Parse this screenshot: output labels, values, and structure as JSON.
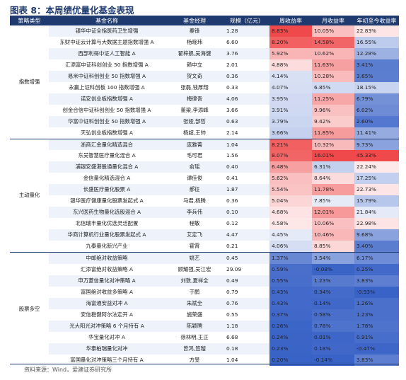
{
  "title": "图表 8：本周绩优量化基金表现",
  "headers": {
    "strategy": "策略类型",
    "name": "基金名称",
    "manager": "基金经理",
    "scale": "规模（亿元）",
    "week": "周收益率",
    "month": "月收益率",
    "ytd": "年初至今收益率"
  },
  "groups": [
    {
      "strategy": "指数增强",
      "rows": [
        {
          "name": "银华中证全指医药卫生增强",
          "manager": "秦锋",
          "scale": "1.28",
          "week": "8.83%",
          "month": "10.05%",
          "ytd": "22.83%"
        },
        {
          "name": "东财中证云计算与大数据主题指数增强 A",
          "manager": "杨晓玮",
          "scale": "6.60",
          "week": "8.20%",
          "month": "14.58%",
          "ytd": "16.55%"
        },
        {
          "name": "西部利得中证人工智能 A",
          "manager": "翟梓舰,吴海健",
          "scale": "3.76",
          "week": "5.92%",
          "month": "10.62%",
          "ytd": "12.28%"
        },
        {
          "name": "汇添富中证科创创业 50 指数增强 A",
          "manager": "赖中立",
          "scale": "2.01",
          "week": "4.88%",
          "month": "11.63%",
          "ytd": "3.41%"
        },
        {
          "name": "易米中证科创创业 50 指数增强 A",
          "manager": "贺文奇",
          "scale": "0.36",
          "week": "4.14%",
          "month": "10.28%",
          "ytd": "3.65%"
        },
        {
          "name": "永赢上证科创板 100 指数增强 A",
          "manager": "张磊,钱厚翔",
          "scale": "0.33",
          "week": "4.07%",
          "month": "6.85%",
          "ytd": "18.15%"
        },
        {
          "name": "诺安创业板指数增强 A",
          "manager": "梅律吾",
          "scale": "4.06",
          "week": "3.95%",
          "month": "11.25%",
          "ytd": "6.79%"
        },
        {
          "name": "创金合信中证科创创业 50 指数增强 A",
          "manager": "董梁,李添峰",
          "scale": "3.66",
          "week": "3.91%",
          "month": "9.96%",
          "ytd": "6.02%"
        },
        {
          "name": "华富中证科创创业 50 指数增强 A",
          "manager": "张娅,郜哲",
          "scale": "0.63",
          "week": "3.79%",
          "month": "9.42%",
          "ytd": "2.60%"
        },
        {
          "name": "天弘创业板指数增强 A",
          "manager": "杨超,王帅",
          "scale": "2.14",
          "week": "3.66%",
          "month": "11.85%",
          "ytd": "11.41%"
        }
      ]
    },
    {
      "strategy": "主动量化",
      "rows": [
        {
          "name": "浙商汇金量化精选混合",
          "manager": "庞雅菁",
          "scale": "1.04",
          "week": "8.21%",
          "month": "10.32%",
          "ytd": "9.73%"
        },
        {
          "name": "东吴智慧医疗量化混合 A",
          "manager": "毛可君",
          "scale": "1.56",
          "week": "8.07%",
          "month": "16.01%",
          "ytd": "45.33%"
        },
        {
          "name": "浦银安盛港股通量化混合 A",
          "manager": "俞瑶",
          "scale": "0.40",
          "week": "6.48%",
          "month": "6.31%",
          "ytd": "22.24%"
        },
        {
          "name": "金信量化精选混合 A",
          "manager": "谭佳俊",
          "scale": "0.41",
          "week": "5.62%",
          "month": "8.64%",
          "ytd": "17.25%"
        },
        {
          "name": "长盛医疗量化股票 A",
          "manager": "郝征",
          "scale": "1.87",
          "week": "5.54%",
          "month": "11.78%",
          "ytd": "22.73%"
        },
        {
          "name": "银华医疗健康量化股票发起式 A",
          "manager": "马君,杨腾",
          "scale": "0.36",
          "week": "5.04%",
          "month": "7.85%",
          "ytd": "15.79%"
        },
        {
          "name": "东兴医药生物量化选股混合 A",
          "manager": "李兵伟",
          "scale": "0.10",
          "week": "4.68%",
          "month": "12.01%",
          "ytd": "21.84%"
        },
        {
          "name": "北信瑞丰量化优选灵活配置",
          "manager": "程敏",
          "scale": "0.12",
          "week": "4.58%",
          "month": "10.06%",
          "ytd": "22.98%"
        },
        {
          "name": "华商计算机行业量化股票发起式 A",
          "manager": "艾定飞",
          "scale": "4.47",
          "week": "4.45%",
          "month": "10.46%",
          "ytd": "9.68%"
        },
        {
          "name": "九泰量化新兴产业",
          "manager": "霍霄",
          "scale": "0.21",
          "week": "4.06%",
          "month": "8.85%",
          "ytd": "3.40%"
        }
      ]
    },
    {
      "strategy": "股票多空",
      "rows": [
        {
          "name": "中邮绝对收益策略",
          "manager": "姚艺",
          "scale": "0.45",
          "week": "1.37%",
          "month": "3.54%",
          "ytd": "6.17%"
        },
        {
          "name": "汇添富绝对收益策略 A",
          "manager": "顾耀强,吴江宏",
          "scale": "29.09",
          "week": "0.59%",
          "month": "-0.08%",
          "ytd": "0.25%"
        },
        {
          "name": "申万菱信量化对冲策略 A",
          "manager": "刘敦,夏祥全",
          "scale": "0.49",
          "week": "0.55%",
          "month": "1.23%",
          "ytd": "3.83%"
        },
        {
          "name": "富国绝对收益多策略 A",
          "manager": "于鹏",
          "scale": "0.79",
          "week": "0.43%",
          "month": "0.34%",
          "ytd": "-0.93%"
        },
        {
          "name": "海富通安益对冲 A",
          "manager": "朱斌全",
          "scale": "0.76",
          "week": "0.43%",
          "month": "0.14%",
          "ytd": "1.26%"
        },
        {
          "name": "安信稳健阿尔法定开 A",
          "manager": "施荣盛",
          "scale": "0.55",
          "week": "0.37%",
          "month": "0.58%",
          "ytd": "1.23%"
        },
        {
          "name": "光大阳光对冲策略 6 个月持有 A",
          "manager": "陈颖聘",
          "scale": "1.18",
          "week": "0.26%",
          "month": "0.78%",
          "ytd": "1.78%"
        },
        {
          "name": "华宝量化对冲 A",
          "manager": "徐林明,王正",
          "scale": "6.68",
          "week": "0.24%",
          "month": "0.01%",
          "ytd": "0.91%"
        },
        {
          "name": "华泰柏瑞量化对冲",
          "manager": "曾鸿,笪璇",
          "scale": "0.18",
          "week": "0.23%",
          "month": "0.18%",
          "ytd": "-0.47%"
        },
        {
          "name": "富国量化对冲策略三个月持有 A",
          "manager": "方旻",
          "scale": "1.04",
          "week": "0.20%",
          "month": "-0.14%",
          "ytd": "3.83%"
        }
      ]
    }
  ],
  "source": "资料来源：Wind，爱建证券研究所",
  "colors": {
    "header": "#1f3a6e",
    "positive": "#f0494b",
    "negative": "#3a63c7",
    "shade": "#edf2fb"
  }
}
